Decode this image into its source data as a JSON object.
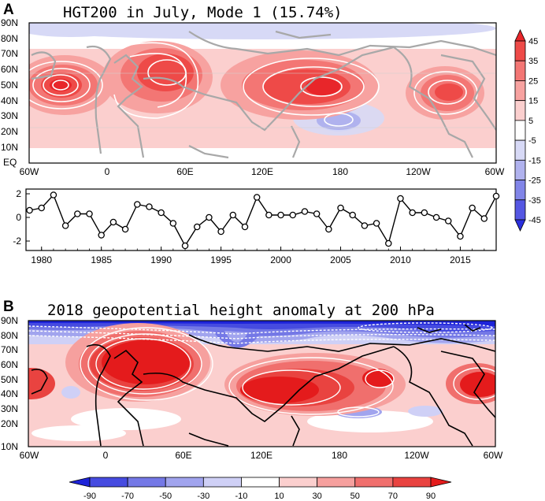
{
  "chart_data": [
    {
      "type": "heatmap",
      "panel_label": "A",
      "title": "HGT200 in July, Mode 1 (15.74%)",
      "lat_ticks": [
        "90N",
        "80N",
        "70N",
        "60N",
        "50N",
        "40N",
        "30N",
        "20N",
        "10N",
        "EQ"
      ],
      "lon_ticks": [
        "60W",
        "0",
        "60E",
        "120E",
        "180",
        "120W",
        "60W"
      ],
      "colorbar_levels": [
        "45",
        "35",
        "25",
        "15",
        "5",
        "-5",
        "-15",
        "-25",
        "-35",
        "-45"
      ],
      "colorbar_colors": [
        "#e8262a",
        "#ee4a48",
        "#f37674",
        "#f7a2a0",
        "#fbcfce",
        "#ffffff",
        "#d7d9f6",
        "#b0b2ee",
        "#8185e8",
        "#5557e3",
        "#2a2fdd"
      ]
    },
    {
      "type": "line",
      "title": "",
      "x": [
        1979,
        1980,
        1981,
        1982,
        1983,
        1984,
        1985,
        1986,
        1987,
        1988,
        1989,
        1990,
        1991,
        1992,
        1993,
        1994,
        1995,
        1996,
        1997,
        1998,
        1999,
        2000,
        2001,
        2002,
        2003,
        2004,
        2005,
        2006,
        2007,
        2008,
        2009,
        2010,
        2011,
        2012,
        2013,
        2014,
        2015,
        2016,
        2017,
        2018
      ],
      "values": [
        0.6,
        0.8,
        1.9,
        -0.7,
        0.3,
        0.3,
        -1.5,
        -0.4,
        -1.0,
        1.1,
        0.9,
        0.4,
        -0.5,
        -2.4,
        -0.8,
        0.0,
        -1.2,
        0.2,
        -0.8,
        1.7,
        0.2,
        0.2,
        0.2,
        0.5,
        0.3,
        -1.0,
        0.8,
        0.2,
        -0.7,
        -0.5,
        -2.2,
        1.6,
        0.4,
        0.4,
        0.0,
        -0.3,
        -1.6,
        0.8,
        -0.1,
        1.8
      ],
      "xticks": [
        "1980",
        "1985",
        "1990",
        "1995",
        "2000",
        "2005",
        "2010",
        "2015"
      ],
      "yticks": [
        "2",
        "0",
        "-2"
      ],
      "xlim": [
        1978.7,
        2018
      ],
      "ylim": [
        -2.8,
        2.4
      ]
    },
    {
      "type": "heatmap",
      "panel_label": "B",
      "title": "2018 geopotential height anomaly at 200 hPa",
      "lat_ticks": [
        "90N",
        "80N",
        "70N",
        "60N",
        "50N",
        "40N",
        "30N",
        "20N",
        "10N"
      ],
      "lon_ticks": [
        "60W",
        "0",
        "60E",
        "120E",
        "180",
        "120W",
        "60W"
      ],
      "colorbar_levels": [
        "-90",
        "-70",
        "-50",
        "-30",
        "-10",
        "10",
        "30",
        "50",
        "70",
        "90"
      ],
      "colorbar_colors": [
        "#1d23d9",
        "#464be0",
        "#7478e6",
        "#a1a4ee",
        "#cfd0f6",
        "#ffffff",
        "#fbcfce",
        "#f6a09e",
        "#f06f6d",
        "#e94340",
        "#e41b1c"
      ]
    }
  ]
}
